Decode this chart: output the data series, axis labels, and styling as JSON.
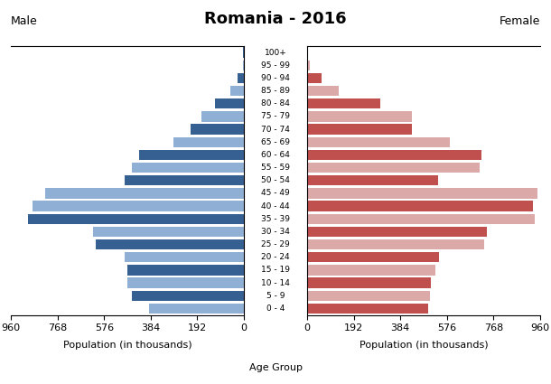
{
  "title": "Romania - 2016",
  "age_groups": [
    "0 - 4",
    "5 - 9",
    "10 - 14",
    "15 - 19",
    "20 - 24",
    "25 - 29",
    "30 - 34",
    "35 - 39",
    "40 - 44",
    "45 - 49",
    "50 - 54",
    "55 - 59",
    "60 - 64",
    "65 - 69",
    "70 - 74",
    "75 - 79",
    "80 - 84",
    "85 - 89",
    "90 - 94",
    "95 - 99",
    "100+"
  ],
  "male": [
    390,
    460,
    480,
    480,
    490,
    610,
    620,
    890,
    870,
    820,
    490,
    460,
    430,
    290,
    220,
    175,
    120,
    55,
    25,
    5,
    2
  ],
  "female": [
    500,
    505,
    510,
    530,
    545,
    730,
    740,
    940,
    930,
    950,
    540,
    710,
    720,
    590,
    430,
    430,
    300,
    130,
    60,
    12,
    4
  ],
  "male_colors": [
    "#8fafd4",
    "#366092",
    "#8fafd4",
    "#366092",
    "#8fafd4",
    "#366092",
    "#8fafd4",
    "#366092",
    "#8fafd4",
    "#8fafd4",
    "#366092",
    "#8fafd4",
    "#366092",
    "#8fafd4",
    "#366092",
    "#8fafd4",
    "#366092",
    "#8fafd4",
    "#366092",
    "#8fafd4",
    "#366092"
  ],
  "female_colors": [
    "#c0504d",
    "#dba9a8",
    "#c0504d",
    "#dba9a8",
    "#c0504d",
    "#dba9a8",
    "#c0504d",
    "#dba9a8",
    "#c0504d",
    "#dba9a8",
    "#c0504d",
    "#dba9a8",
    "#c0504d",
    "#dba9a8",
    "#c0504d",
    "#dba9a8",
    "#c0504d",
    "#dba9a8",
    "#c0504d",
    "#dba9a8",
    "#c0504d"
  ],
  "xlim": 960,
  "xticks": [
    0,
    192,
    384,
    576,
    768,
    960
  ],
  "xlabel_left": "Population (in thousands)",
  "xlabel_center": "Age Group",
  "xlabel_right": "Population (in thousands)",
  "ylabel_left": "Male",
  "ylabel_right": "Female",
  "background_color": "#ffffff",
  "bar_height": 0.8
}
